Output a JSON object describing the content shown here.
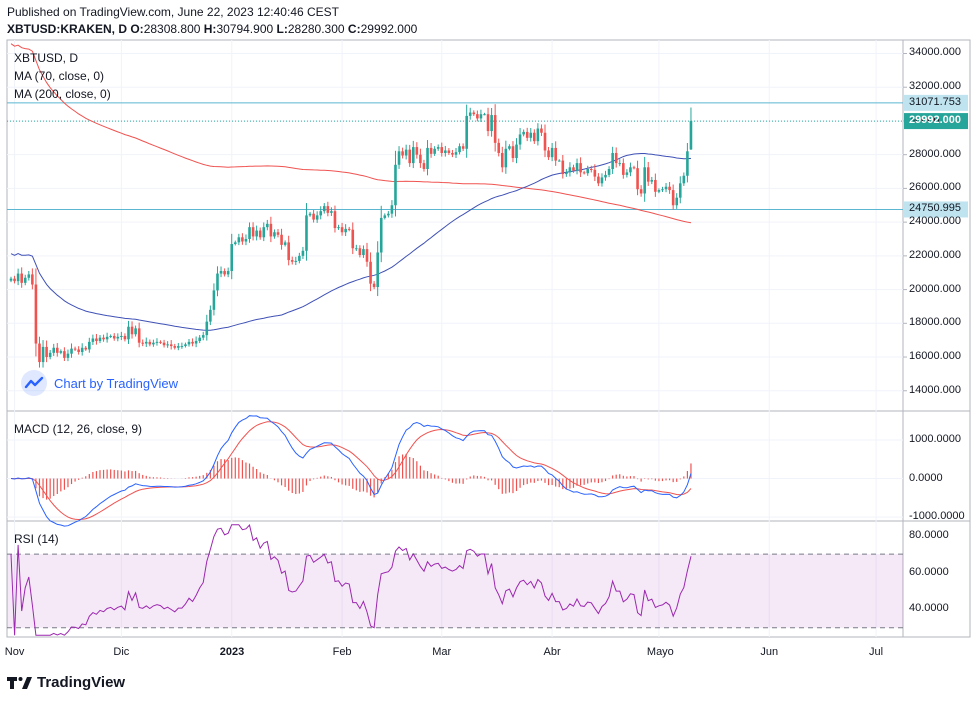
{
  "header": {
    "published": "Published on TradingView.com, June 22, 2023 12:40:46 CEST",
    "symbol": "XBTUSD:KRAKEN, D",
    "o_label": "O:",
    "o_value": "28308.800",
    "h_label": "H:",
    "h_value": "30794.900",
    "l_label": "L:",
    "l_value": "28280.300",
    "c_label": "C:",
    "c_value": "29992.000"
  },
  "watermark": "Chart by TradingView",
  "footer": {
    "brand": "TradingView"
  },
  "colors": {
    "up": "#26a69a",
    "down": "#ef5350",
    "ma70": "#3f51b5",
    "ma200": "#ef5350",
    "macd": "#2962ff",
    "signal": "#ef5350",
    "rsi": "#9c27b0",
    "hline": "#5bb7d1"
  },
  "chart_data": [
    {
      "type": "candlestick",
      "title": "XBTUSD, D",
      "legend": [
        "XBTUSD, D",
        "MA (70, close, 0)",
        "MA (200, close, 0)"
      ],
      "ylim": [
        12800,
        34800
      ],
      "y_ticks": [
        "34000.000",
        "32000.000",
        "30000.000",
        "28000.000",
        "26000.000",
        "24000.000",
        "22000.000",
        "20000.000",
        "18000.000",
        "16000.000",
        "14000.000"
      ],
      "x_ticks": [
        "Nov",
        "Dic",
        "2023",
        "Feb",
        "Mar",
        "Abr",
        "Mayo",
        "Jun",
        "Jul"
      ],
      "horizontal_lines": [
        {
          "label": "31071.753",
          "value": 31071.753
        },
        {
          "label": "24750.995",
          "value": 24750.995
        }
      ],
      "last_price": {
        "label": "29992.000",
        "value": 29992.0
      },
      "closes": [
        20650,
        20500,
        20950,
        20400,
        20700,
        20900,
        20300,
        16800,
        15700,
        16600,
        16000,
        16250,
        16550,
        16250,
        16350,
        15950,
        16200,
        16500,
        16450,
        16300,
        16550,
        16450,
        16900,
        17100,
        16950,
        17150,
        17050,
        17200,
        17250,
        17100,
        17200,
        17250,
        17050,
        17800,
        17350,
        17700,
        16850,
        16800,
        16900,
        16750,
        16850,
        16900,
        16850,
        16700,
        16750,
        16650,
        16550,
        16650,
        16650,
        16750,
        16900,
        16800,
        16950,
        17150,
        17300,
        18100,
        18800,
        19950,
        20950,
        21100,
        20900,
        21100,
        22700,
        22800,
        23100,
        22850,
        23000,
        23700,
        23150,
        23500,
        23100,
        23700,
        23900,
        23150,
        23400,
        23250,
        22650,
        22800,
        21750,
        21650,
        21700,
        22000,
        22300,
        24400,
        24500,
        24150,
        24400,
        24650,
        24950,
        24550,
        24650,
        23650,
        23700,
        23400,
        23600,
        23550,
        22450,
        22450,
        22050,
        22400,
        21650,
        20350,
        20150,
        22200,
        24250,
        24400,
        24500,
        25000,
        27400,
        28200,
        27950,
        28300,
        27500,
        28450,
        28000,
        27500,
        27150,
        28400,
        28050,
        28350,
        28450,
        28100,
        28250,
        28100,
        28000,
        28150,
        28500,
        28350,
        30300,
        30500,
        30400,
        30150,
        30400,
        30400,
        29400,
        30350,
        28700,
        28100,
        27250,
        28350,
        28500,
        27800,
        28600,
        29200,
        29350,
        29000,
        29300,
        28800,
        29550,
        29300,
        28250,
        27850,
        28400,
        27650,
        27650,
        26850,
        26950,
        27250,
        27050,
        27500,
        26950,
        26900,
        27150,
        27100,
        26700,
        26300,
        26650,
        26800,
        27150,
        28100,
        27500,
        27500,
        26800,
        26950,
        27250,
        27200,
        25950,
        25700,
        27250,
        26400,
        26500,
        25800,
        25900,
        25950,
        26100,
        25900,
        25000,
        25450,
        26300,
        26750,
        28200,
        29992
      ]
    },
    {
      "type": "line",
      "title": "MACD (12, 26, close, 9)",
      "ylim": [
        -1100,
        1750
      ],
      "y_ticks": [
        "1000.0000",
        "0.0000",
        "-1000.0000"
      ],
      "series": [
        {
          "name": "MACD"
        },
        {
          "name": "Signal"
        },
        {
          "name": "Histogram"
        }
      ]
    },
    {
      "type": "line",
      "title": "RSI (14)",
      "ylim": [
        25,
        88
      ],
      "y_ticks": [
        "80.0000",
        "60.0000",
        "40.0000"
      ],
      "band": [
        30,
        70
      ]
    }
  ]
}
